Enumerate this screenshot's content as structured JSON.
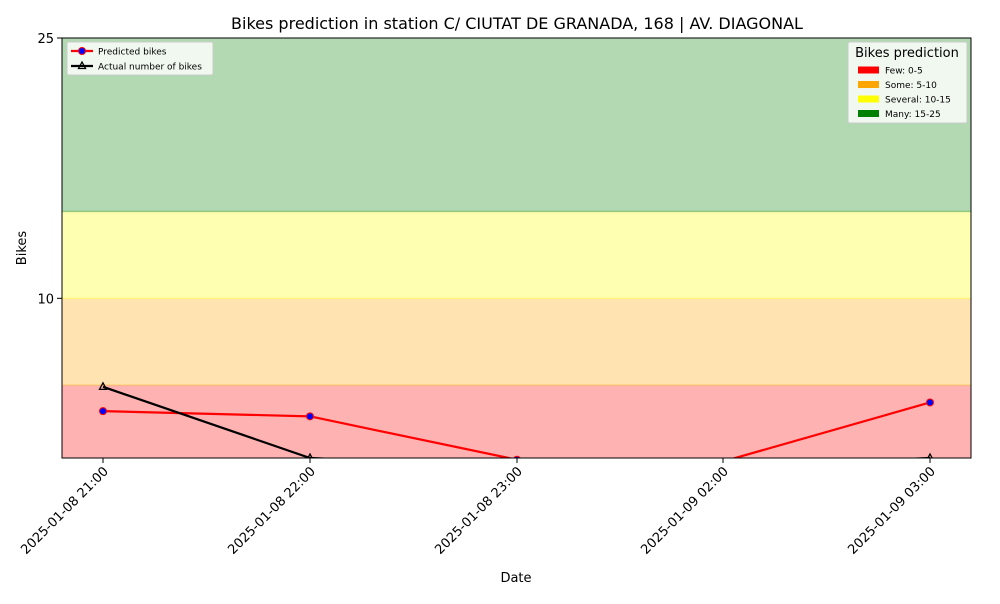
{
  "chart_data": {
    "type": "line",
    "title": "Bikes prediction in station C/ CIUTAT DE GRANADA, 168 | AV. DIAGONAL",
    "xlabel": "Date",
    "ylabel": "Bikes",
    "categories": [
      "2025-01-08 21:00",
      "2025-01-08 22:00",
      "2025-01-08 23:00",
      "2025-01-09 02:00",
      "2025-01-09 03:00"
    ],
    "yticks": [
      "10",
      "25"
    ],
    "ylim": [
      0.8,
      25
    ],
    "grid": false,
    "legend_position": "top-left",
    "series": [
      {
        "name": "Predicted bikes",
        "color": "#ff0000",
        "marker_color": "#0000ff",
        "values": [
          3.5,
          3.2,
          0.7,
          0.6,
          4.0
        ]
      },
      {
        "name": "Actual number of bikes",
        "color": "#000000",
        "marker_color": "#000000",
        "values": [
          4.9,
          0.8,
          0.3,
          0.3,
          0.8
        ]
      }
    ],
    "bands": {
      "title": "Bikes prediction",
      "legend_position": "top-right",
      "items": [
        {
          "label": "Few: 0-5",
          "color": "#ff0000",
          "from": 0,
          "to": 5
        },
        {
          "label": "Some: 5-10",
          "color": "#ffa500",
          "from": 5,
          "to": 10
        },
        {
          "label": "Several: 10-15",
          "color": "#ffff00",
          "from": 10,
          "to": 15
        },
        {
          "label": "Many: 15-25",
          "color": "#008000",
          "from": 15,
          "to": 25
        }
      ]
    }
  }
}
